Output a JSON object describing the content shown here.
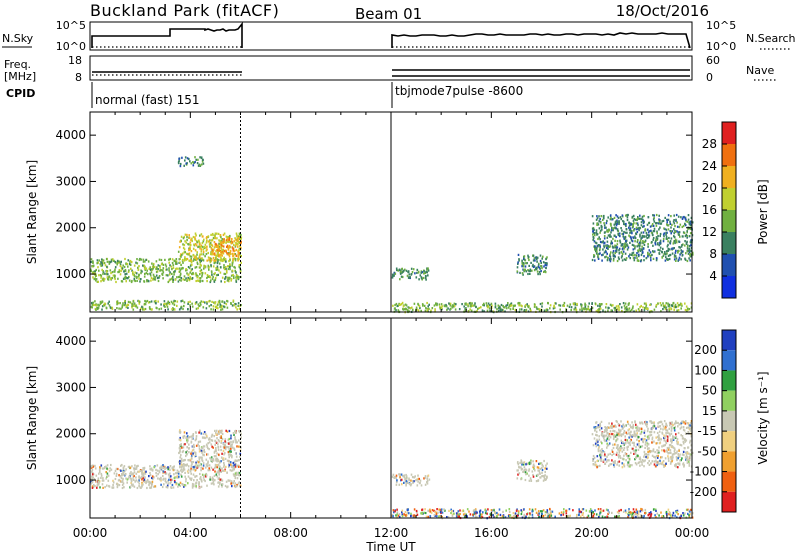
{
  "header": {
    "station": "Buckland Park (fitACF)",
    "beam": "Beam 01",
    "date": "18/Oct/2016"
  },
  "summary_panels": {
    "nsky_label": "N.Sky",
    "nsky_ticks": [
      "10^5",
      "10^0"
    ],
    "nsearch_label": "N.Search",
    "nsearch_ticks": [
      "10^5",
      "10^0"
    ],
    "freq_label": "Freq.",
    "freq_unit": "[MHz]",
    "freq_ticks": [
      "18",
      "8"
    ],
    "nave_label": "Nave",
    "nave_ticks": [
      "60",
      "0"
    ],
    "cpid_label": "CPID",
    "cpid_segments": [
      {
        "name": "normal (fast) 151",
        "start_h": 0,
        "end_h": 6
      },
      {
        "name": "tbjmode7pulse -8600",
        "start_h": 12,
        "end_h": 24
      }
    ]
  },
  "chart_data": [
    {
      "type": "heatmap",
      "panel": "power",
      "ylabel": "Slant Range [km]",
      "xlabel": "Time UT",
      "xlim": [
        0,
        24
      ],
      "ylim": [
        180,
        4500
      ],
      "x_ticks": [
        "00:00",
        "04:00",
        "08:00",
        "12:00",
        "16:00",
        "20:00",
        "00:00"
      ],
      "y_ticks": [
        1000,
        2000,
        3000,
        4000
      ],
      "data_gaps": [
        [
          6,
          12
        ]
      ],
      "colorbar": {
        "label": "Power [dB]",
        "range": [
          0,
          32
        ],
        "ticks": [
          4,
          8,
          12,
          16,
          20,
          24,
          28
        ],
        "colors": [
          "#1030e0",
          "#2050b0",
          "#3a8060",
          "#70b040",
          "#c0d030",
          "#f0b020",
          "#f07010",
          "#e02020"
        ]
      },
      "echo_regions": [
        {
          "t0": 0,
          "t1": 6,
          "r0": 850,
          "r1": 1350,
          "level": 12
        },
        {
          "t0": 3.5,
          "t1": 6,
          "r0": 1300,
          "r1": 1900,
          "level": 16
        },
        {
          "t0": 4.8,
          "t1": 6,
          "r0": 1400,
          "r1": 1800,
          "level": 20
        },
        {
          "t0": 3.5,
          "t1": 4.5,
          "r0": 3350,
          "r1": 3550,
          "level": 8
        },
        {
          "t0": 0,
          "t1": 6,
          "r0": 250,
          "r1": 450,
          "level": 10
        },
        {
          "t0": 12,
          "t1": 24,
          "r0": 200,
          "r1": 400,
          "level": 10
        },
        {
          "t0": 12,
          "t1": 13.5,
          "r0": 900,
          "r1": 1150,
          "level": 6
        },
        {
          "t0": 17,
          "t1": 18.2,
          "r0": 1000,
          "r1": 1450,
          "level": 6
        },
        {
          "t0": 20,
          "t1": 24,
          "r0": 1300,
          "r1": 2300,
          "level": 6
        }
      ]
    },
    {
      "type": "heatmap",
      "panel": "velocity",
      "ylabel": "Slant Range [km]",
      "xlabel": "Time UT",
      "xlim": [
        0,
        24
      ],
      "ylim": [
        180,
        4500
      ],
      "x_ticks": [
        "00:00",
        "04:00",
        "08:00",
        "12:00",
        "16:00",
        "20:00",
        "00:00"
      ],
      "y_ticks": [
        1000,
        2000,
        3000,
        4000
      ],
      "data_gaps": [
        [
          6,
          12
        ]
      ],
      "colorbar": {
        "label": "Velocity [m s⁻¹]",
        "ticks": [
          "200",
          "100",
          "50",
          "15",
          "-15",
          "-50",
          "-100",
          "-200"
        ],
        "colors": [
          "#2040c0",
          "#3070d0",
          "#30a040",
          "#90d060",
          "#c8c8b4",
          "#f0d080",
          "#f0a030",
          "#f06010",
          "#e02020"
        ]
      },
      "echo_regions": [
        {
          "t0": 0,
          "t1": 6,
          "r0": 850,
          "r1": 1350,
          "level": "ground"
        },
        {
          "t0": 3.5,
          "t1": 6,
          "r0": 1300,
          "r1": 2100,
          "level": "ground"
        },
        {
          "t0": 12,
          "t1": 24,
          "r0": 200,
          "r1": 400,
          "level": "mixed"
        },
        {
          "t0": 12,
          "t1": 13.5,
          "r0": 900,
          "r1": 1150,
          "level": "ground"
        },
        {
          "t0": 17,
          "t1": 18.2,
          "r0": 1000,
          "r1": 1450,
          "level": "ground"
        },
        {
          "t0": 20,
          "t1": 24,
          "r0": 1300,
          "r1": 2300,
          "level": "ground"
        }
      ]
    }
  ]
}
